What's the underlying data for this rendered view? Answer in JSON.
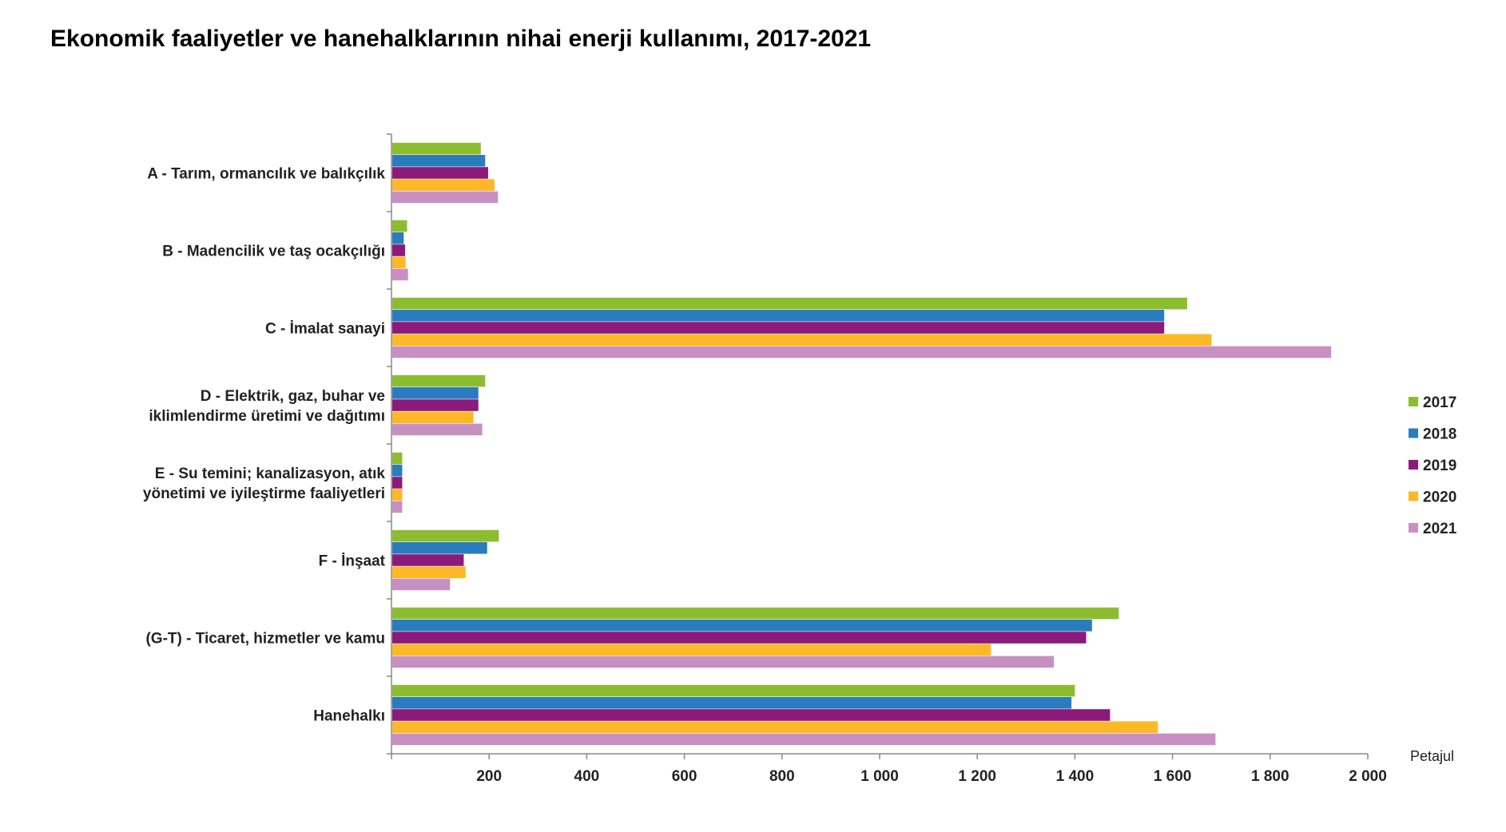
{
  "chart_data": {
    "type": "bar",
    "orientation": "horizontal",
    "title": "Ekonomik faaliyetler ve hanehalklarının nihai enerji kullanımı, 2017-2021",
    "xlabel": "Petajul",
    "ylabel": "",
    "xlim": [
      0,
      2000
    ],
    "x_ticks": [
      "200",
      "400",
      "600",
      "800",
      "1 000",
      "1 200",
      "1 400",
      "1 600",
      "1 800",
      "2 000"
    ],
    "x_tick_values": [
      200,
      400,
      600,
      800,
      1000,
      1200,
      1400,
      1600,
      1800,
      2000
    ],
    "grid": false,
    "legend_position": "right",
    "categories": [
      [
        "A - Tarım, ormancılık ve balıkçılık"
      ],
      [
        "B - Madencilik ve taş ocakçılığı"
      ],
      [
        "C - İmalat sanayi"
      ],
      [
        "D - Elektrik, gaz, buhar ve",
        "iklimlendirme üretimi ve dağıtımı"
      ],
      [
        "E - Su temini; kanalizasyon, atık",
        "yönetimi ve iyileştirme faaliyetleri"
      ],
      [
        "F - İnşaat"
      ],
      [
        "(G-T) - Ticaret, hizmetler ve kamu"
      ],
      [
        "Hanehalkı"
      ]
    ],
    "series": [
      {
        "name": "2017",
        "color": "#8cbd2f",
        "values": [
          183,
          32,
          1630,
          192,
          22,
          220,
          1490,
          1400
        ]
      },
      {
        "name": "2018",
        "color": "#2b7cbf",
        "values": [
          192,
          25,
          1583,
          178,
          22,
          196,
          1435,
          1393
        ]
      },
      {
        "name": "2019",
        "color": "#8b1a7a",
        "values": [
          198,
          28,
          1583,
          178,
          22,
          148,
          1423,
          1472
        ]
      },
      {
        "name": "2020",
        "color": "#fcb827",
        "values": [
          211,
          29,
          1680,
          168,
          22,
          152,
          1228,
          1570
        ]
      },
      {
        "name": "2021",
        "color": "#c890c2",
        "values": [
          218,
          34,
          1925,
          186,
          22,
          120,
          1357,
          1688
        ]
      }
    ]
  }
}
